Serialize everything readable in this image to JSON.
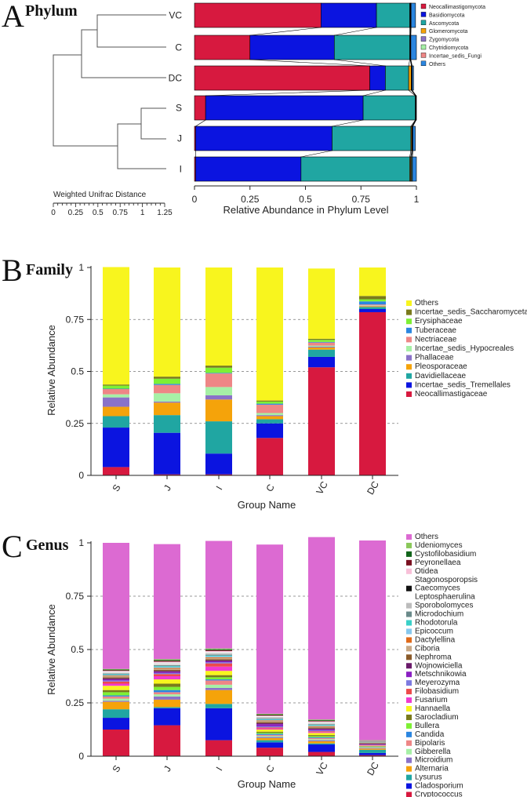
{
  "chart_data": [
    {
      "panel": "A",
      "title": "Phylum",
      "type": "bar",
      "orientation": "horizontal",
      "categories": [
        "VC",
        "C",
        "DC",
        "S",
        "J",
        "I"
      ],
      "xlabel": "Relative Abundance in Phylum Level",
      "xlim": [
        0,
        1
      ],
      "xticks": [
        "0",
        "0.25",
        "0.5",
        "0.75",
        "1"
      ],
      "dendrogram_label": "Weighted Unifrac Distance",
      "dendrogram_ticks": [
        "0",
        "0.25",
        "0.5",
        "0.75",
        "1",
        "1.25"
      ],
      "series": [
        {
          "name": "Neocallimastigomycota",
          "color": "#d7193f",
          "values": [
            0.57,
            0.25,
            0.79,
            0.05,
            0.005,
            0.005
          ]
        },
        {
          "name": "Basidiomycota",
          "color": "#0b14e0",
          "values": [
            0.25,
            0.38,
            0.07,
            0.71,
            0.615,
            0.475
          ]
        },
        {
          "name": "Ascomycota",
          "color": "#20a6a2",
          "values": [
            0.15,
            0.34,
            0.105,
            0.235,
            0.355,
            0.49
          ]
        },
        {
          "name": "Glomeromycota",
          "color": "#f5a30a",
          "values": [
            0.002,
            0.002,
            0.012,
            0.001,
            0.004,
            0.004
          ]
        },
        {
          "name": "Zygomycota",
          "color": "#8a72c8",
          "values": [
            0.002,
            0.001,
            0.002,
            0.001,
            0.002,
            0.003
          ]
        },
        {
          "name": "Chytridiomycota",
          "color": "#a6f0a6",
          "values": [
            0.001,
            0.001,
            0.001,
            0.001,
            0.002,
            0.004
          ]
        },
        {
          "name": "Incertae_sedis_Fungi",
          "color": "#ee8686",
          "values": [
            0.001,
            0.001,
            0.001,
            0.001,
            0.001,
            0.001
          ]
        },
        {
          "name": "Others",
          "color": "#2b86e0",
          "values": [
            0.02,
            0.025,
            0.006,
            0.001,
            0.011,
            0.018
          ]
        }
      ]
    },
    {
      "panel": "B",
      "title": "Family",
      "type": "bar",
      "orientation": "vertical",
      "categories": [
        "S",
        "J",
        "I",
        "C",
        "VC",
        "DC"
      ],
      "xlabel": "Group Name",
      "ylabel": "Relative Abundance",
      "ylim": [
        0,
        1
      ],
      "yticks": [
        "0",
        "0.25",
        "0.5",
        "0.75",
        "1"
      ],
      "series": [
        {
          "name": "Neocallimastigaceae",
          "color": "#d7193f",
          "values": [
            0.04,
            0.005,
            0.005,
            0.18,
            0.52,
            0.785
          ]
        },
        {
          "name": "Incertae_sedis_Tremellales",
          "color": "#0b14e0",
          "values": [
            0.19,
            0.2,
            0.1,
            0.07,
            0.05,
            0.015
          ]
        },
        {
          "name": "Davidiellaceae",
          "color": "#20a6a2",
          "values": [
            0.055,
            0.085,
            0.155,
            0.02,
            0.035,
            0.01
          ]
        },
        {
          "name": "Pleosporaceae",
          "color": "#f5a30a",
          "values": [
            0.045,
            0.06,
            0.105,
            0.015,
            0.01,
            0.004
          ]
        },
        {
          "name": "Phallaceae",
          "color": "#8a72c8",
          "values": [
            0.045,
            0.005,
            0.02,
            0.005,
            0.004,
            0.002
          ]
        },
        {
          "name": "Incertae_sedis_Hypocreales",
          "color": "#a6f0a6",
          "values": [
            0.015,
            0.04,
            0.04,
            0.01,
            0.005,
            0.002
          ]
        },
        {
          "name": "Nectriaceae",
          "color": "#ee8686",
          "values": [
            0.025,
            0.04,
            0.065,
            0.04,
            0.015,
            0.004
          ]
        },
        {
          "name": "Tuberaceae",
          "color": "#2b86e0",
          "values": [
            0.002,
            0.005,
            0.003,
            0.005,
            0.003,
            0.015
          ]
        },
        {
          "name": "Erysiphaceae",
          "color": "#7ef034",
          "values": [
            0.015,
            0.025,
            0.025,
            0.01,
            0.01,
            0.01
          ]
        },
        {
          "name": "Incertae_sedis_Saccharomycetales",
          "color": "#7a7a1c",
          "values": [
            0.005,
            0.01,
            0.01,
            0.005,
            0.005,
            0.016
          ]
        },
        {
          "name": "Others",
          "color": "#f8f51e",
          "values": [
            0.565,
            0.525,
            0.472,
            0.64,
            0.338,
            0.137
          ]
        }
      ]
    },
    {
      "panel": "C",
      "title": "Genus",
      "type": "bar",
      "orientation": "vertical",
      "categories": [
        "S",
        "J",
        "I",
        "C",
        "VC",
        "DC"
      ],
      "xlabel": "Group Name",
      "ylabel": "Relative Abundance",
      "ylim": [
        0,
        1
      ],
      "yticks": [
        "0",
        "0.25",
        "0.5",
        "0.75",
        "1"
      ],
      "series": [
        {
          "name": "Cryptococcus",
          "color": "#d7193f",
          "values": [
            0.125,
            0.145,
            0.075,
            0.04,
            0.02,
            0.005
          ]
        },
        {
          "name": "Cladosporium",
          "color": "#0b14e0",
          "values": [
            0.055,
            0.08,
            0.15,
            0.025,
            0.035,
            0.01
          ]
        },
        {
          "name": "Lysurus",
          "color": "#20a6a2",
          "values": [
            0.04,
            0.005,
            0.02,
            0.01,
            0.005,
            0.015
          ]
        },
        {
          "name": "Alternaria",
          "color": "#f5a30a",
          "values": [
            0.035,
            0.035,
            0.065,
            0.01,
            0.01,
            0.005
          ]
        },
        {
          "name": "Microidium",
          "color": "#8a72c8",
          "values": [
            0.005,
            0.015,
            0.01,
            0.005,
            0.005,
            0.002
          ]
        },
        {
          "name": "Gibberella",
          "color": "#a6f0a6",
          "values": [
            0.01,
            0.01,
            0.015,
            0.005,
            0.005,
            0.002
          ]
        },
        {
          "name": "Bipolaris",
          "color": "#ee8686",
          "values": [
            0.01,
            0.01,
            0.02,
            0.005,
            0.005,
            0.002
          ]
        },
        {
          "name": "Candida",
          "color": "#2b86e0",
          "values": [
            0.005,
            0.01,
            0.005,
            0.005,
            0.004,
            0.002
          ]
        },
        {
          "name": "Bullera",
          "color": "#7ef034",
          "values": [
            0.015,
            0.015,
            0.01,
            0.005,
            0.005,
            0.002
          ]
        },
        {
          "name": "Sarocladium",
          "color": "#7a7a1c",
          "values": [
            0.01,
            0.015,
            0.01,
            0.005,
            0.005,
            0.002
          ]
        },
        {
          "name": "Hannaella",
          "color": "#f8f51e",
          "values": [
            0.02,
            0.02,
            0.02,
            0.01,
            0.01,
            0.002
          ]
        },
        {
          "name": "Fusarium",
          "color": "#f03ad0",
          "values": [
            0.01,
            0.015,
            0.02,
            0.005,
            0.004,
            0.002
          ]
        },
        {
          "name": "Filobasidium",
          "color": "#ee4a4a",
          "values": [
            0.01,
            0.01,
            0.015,
            0.005,
            0.004,
            0.002
          ]
        },
        {
          "name": "Meyerozyma",
          "color": "#7d7ae0",
          "values": [
            0.005,
            0.005,
            0.005,
            0.005,
            0.004,
            0.002
          ]
        },
        {
          "name": "Metschnikowia",
          "color": "#8a1fc2",
          "values": [
            0.005,
            0.005,
            0.005,
            0.01,
            0.005,
            0.002
          ]
        },
        {
          "name": "Wojnowiciella",
          "color": "#6a1a6a",
          "values": [
            0.005,
            0.005,
            0.005,
            0.005,
            0.004,
            0.002
          ]
        },
        {
          "name": "Nephroma",
          "color": "#8a5a2a",
          "values": [
            0.005,
            0.005,
            0.005,
            0.005,
            0.004,
            0.002
          ]
        },
        {
          "name": "Ciboria",
          "color": "#c8a886",
          "values": [
            0.005,
            0.005,
            0.005,
            0.005,
            0.004,
            0.002
          ]
        },
        {
          "name": "Dactylellina",
          "color": "#e06a1a",
          "values": [
            0.003,
            0.004,
            0.004,
            0.003,
            0.003,
            0.001
          ]
        },
        {
          "name": "Epicoccum",
          "color": "#86c8ee",
          "values": [
            0.003,
            0.004,
            0.004,
            0.003,
            0.003,
            0.001
          ]
        },
        {
          "name": "Rhodotorula",
          "color": "#3ad0c8",
          "values": [
            0.003,
            0.004,
            0.004,
            0.003,
            0.003,
            0.001
          ]
        },
        {
          "name": "Microdochium",
          "color": "#6a8a8a",
          "values": [
            0.003,
            0.004,
            0.004,
            0.003,
            0.003,
            0.001
          ]
        },
        {
          "name": "Sporobolomyces",
          "color": "#bcbcbc",
          "values": [
            0.003,
            0.004,
            0.004,
            0.003,
            0.003,
            0.001
          ]
        },
        {
          "name": "Leptosphaerulina",
          "color": "#ffffff",
          "values": [
            0.003,
            0.004,
            0.004,
            0.003,
            0.003,
            0.001
          ]
        },
        {
          "name": "Caecomyces",
          "color": "#111111",
          "values": [
            0.001,
            0.001,
            0.001,
            0.001,
            0.001,
            0.001
          ]
        },
        {
          "name": "Stagonosporopsis",
          "color": "#ffffff",
          "values": [
            0.003,
            0.004,
            0.004,
            0.003,
            0.003,
            0.001
          ]
        },
        {
          "name": "Otidea",
          "color": "#f8c0d8",
          "values": [
            0.003,
            0.004,
            0.004,
            0.003,
            0.003,
            0.001
          ]
        },
        {
          "name": "Peyronellaea",
          "color": "#7a1020",
          "values": [
            0.003,
            0.004,
            0.004,
            0.003,
            0.003,
            0.001
          ]
        },
        {
          "name": "Cystofilobasidium",
          "color": "#10641a",
          "values": [
            0.003,
            0.004,
            0.004,
            0.003,
            0.003,
            0.001
          ]
        },
        {
          "name": "Udeniomyces",
          "color": "#8ac85a",
          "values": [
            0.003,
            0.004,
            0.004,
            0.003,
            0.003,
            0.001
          ]
        },
        {
          "name": "Others",
          "color": "#dc6ad2",
          "values": [
            0.591,
            0.539,
            0.504,
            0.793,
            0.855,
            0.936
          ]
        }
      ]
    }
  ]
}
